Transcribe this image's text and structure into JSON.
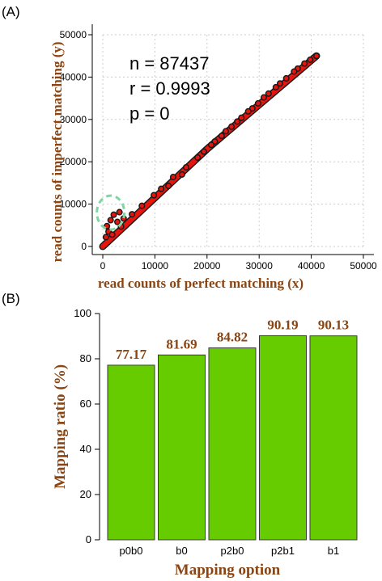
{
  "colors": {
    "axis_label": "#8B4513",
    "point_fill": "#e8150f",
    "point_outline": "#1a1a1a",
    "bar_fill": "#66cc00",
    "bar_stroke": "#3a3a3a",
    "circle_marker": "#7ed6a0",
    "grid": "#cccccc"
  },
  "panel_labels": [
    "(A)",
    "(B)"
  ],
  "chart_data": [
    {
      "type": "scatter",
      "title": "",
      "xlabel": "read counts of perfect matching (x)",
      "ylabel": "read counts of imperfect matching (y)",
      "xlim": [
        0,
        50000
      ],
      "ylim": [
        0,
        50000
      ],
      "x_ticks": [
        "0",
        "10000",
        "20000",
        "30000",
        "40000",
        "50000"
      ],
      "y_ticks": [
        "0",
        "10000",
        "20000",
        "30000",
        "40000",
        "50000"
      ],
      "grid": true,
      "stats": [
        "n = 87437",
        "r = 0.9993",
        "p = 0"
      ],
      "circle_annotation": {
        "x": 1500,
        "y": 8000
      },
      "points": [
        [
          41000,
          45000
        ],
        [
          39800,
          44100
        ],
        [
          38700,
          43200
        ],
        [
          37400,
          42000
        ],
        [
          36700,
          41300
        ],
        [
          35200,
          39700
        ],
        [
          34000,
          38500
        ],
        [
          33200,
          37600
        ],
        [
          31800,
          36100
        ],
        [
          30900,
          35200
        ],
        [
          29800,
          33800
        ],
        [
          28700,
          32600
        ],
        [
          27900,
          31900
        ],
        [
          26600,
          30400
        ],
        [
          25800,
          29500
        ],
        [
          24700,
          28300
        ],
        [
          23600,
          27200
        ],
        [
          22800,
          26100
        ],
        [
          21500,
          24800
        ],
        [
          20800,
          24000
        ],
        [
          2100,
          7500
        ],
        [
          3200,
          8100
        ],
        [
          1500,
          6200
        ],
        [
          800,
          4800
        ],
        [
          2800,
          5800
        ],
        [
          1100,
          3500
        ],
        [
          4000,
          6600
        ],
        [
          600,
          2200
        ],
        [
          3500,
          4700
        ],
        [
          1800,
          2800
        ],
        [
          13500,
          16400
        ],
        [
          9800,
          12100
        ],
        [
          7500,
          9600
        ],
        [
          16000,
          18700
        ],
        [
          18200,
          21000
        ],
        [
          11200,
          13600
        ],
        [
          5600,
          7600
        ],
        [
          15200,
          17000
        ],
        [
          12600,
          14300
        ],
        [
          19400,
          22400
        ]
      ]
    },
    {
      "type": "bar",
      "title": "",
      "xlabel": "Mapping option",
      "ylabel": "Mapping ratio (%)",
      "categories": [
        "p0b0",
        "b0",
        "p2b0",
        "p2b1",
        "b1"
      ],
      "values": [
        77.17,
        81.69,
        84.82,
        90.19,
        90.13
      ],
      "value_labels": [
        "77.17",
        "81.69",
        "84.82",
        "90.19",
        "90.13"
      ],
      "ylim": [
        0,
        100
      ],
      "y_ticks": [
        "0",
        "20",
        "40",
        "60",
        "80",
        "100"
      ],
      "grid": false
    }
  ]
}
